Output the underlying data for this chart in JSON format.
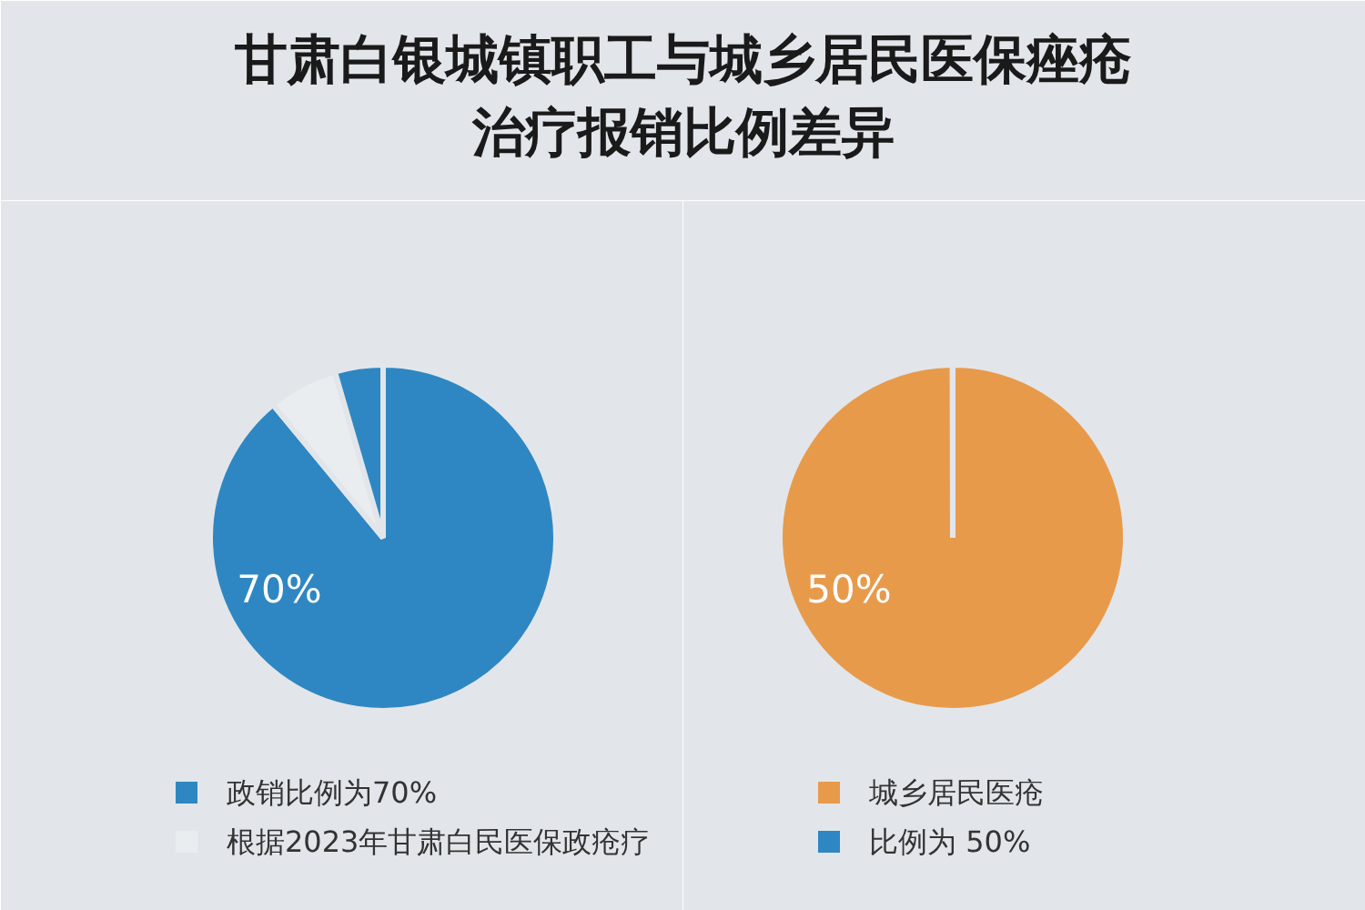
{
  "chart_data": [
    {
      "type": "pie",
      "title": "甘肃白银城镇职工与城乡居民医保痤疮治疗报销比例差异",
      "categories": [
        "政销比例为70%",
        "根据2023年甘肃白民医保政疮疗",
        null
      ],
      "values": [
        89,
        6.5,
        4.5
      ],
      "colors": [
        "#2e87c2",
        "#eaedf0",
        "#2e87c2"
      ],
      "annotations": [
        "70%"
      ],
      "legend": "bottom"
    },
    {
      "type": "pie",
      "categories": [
        "城乡居民医疮",
        "比例为 50%"
      ],
      "values": [
        100,
        0
      ],
      "colors": [
        "#e89a4b",
        "#2e87c2"
      ],
      "annotations": [
        "50%"
      ],
      "legend": "bottom"
    }
  ]
}
